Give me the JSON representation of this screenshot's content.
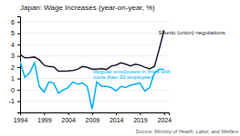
{
  "chart_data": {
    "type": "line",
    "title": "Japan: Wage Increases (year-on-year, %)",
    "source": "Source: Ministry of Health, Labor, and Welfare",
    "x": [
      1994,
      1995,
      1996,
      1997,
      1998,
      1999,
      2000,
      2001,
      2002,
      2003,
      2004,
      2005,
      2006,
      2007,
      2008,
      2009,
      2010,
      2011,
      2012,
      2013,
      2014,
      2015,
      2016,
      2017,
      2018,
      2019,
      2020,
      2021,
      2022,
      2023,
      2024
    ],
    "series": [
      {
        "color": "#1a1a2e",
        "values": [
          3.13,
          2.83,
          2.86,
          2.9,
          2.66,
          2.18,
          2.06,
          2.03,
          1.65,
          1.64,
          1.67,
          1.71,
          1.82,
          2.07,
          1.99,
          1.83,
          1.82,
          1.87,
          1.8,
          2.1,
          2.19,
          2.38,
          2.27,
          2.11,
          2.26,
          2.18,
          2.0,
          1.86,
          2.07,
          3.58,
          5.28
        ]
      },
      {
        "color": "#00b0f0",
        "values": [
          2.5,
          1.1,
          1.5,
          2.4,
          0.3,
          -0.2,
          0.7,
          0.6,
          -0.3,
          0.0,
          0.2,
          0.7,
          0.5,
          0.6,
          0.3,
          -1.7,
          0.7,
          0.3,
          0.3,
          0.2,
          -0.1,
          0.3,
          0.2,
          0.4,
          0.5,
          0.6,
          -0.1,
          0.2,
          1.5,
          1.8,
          1.8
        ]
      }
    ],
    "annotations": [
      {
        "text": "Shunto (union) negotiations",
        "x": 2022.8,
        "y": 4.8
      },
      {
        "text": "Regular employees in firms with\nmore than 30 employees",
        "x": 2009.2,
        "y": 0.85
      }
    ],
    "xlim": [
      1994,
      2025
    ],
    "xticks": [
      1994,
      1999,
      2004,
      2009,
      2014,
      2019,
      2024
    ],
    "ylim": [
      -2,
      6.5
    ],
    "yticks": [
      -1,
      0,
      1,
      2,
      3,
      4,
      5,
      6
    ],
    "grid": true
  }
}
